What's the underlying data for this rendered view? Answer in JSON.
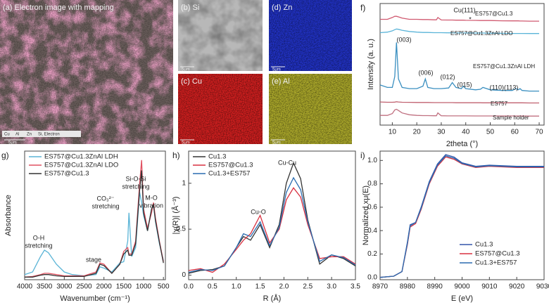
{
  "micrographs": [
    {
      "label": "(a) Electron image with mapping",
      "scale_bar": "5μm",
      "legend": [
        "Cu",
        "Al",
        "Zn",
        "Si, Electron"
      ]
    },
    {
      "label": "(b) Si",
      "scale_bar": "5μm"
    },
    {
      "label": "(d) Zn",
      "scale_bar": "5μm"
    },
    {
      "label": "(c) Cu",
      "scale_bar": "5μm"
    },
    {
      "label": "(e) Al",
      "scale_bar": "5μm"
    }
  ],
  "chart_data": [
    {
      "type": "line",
      "panel": "f)",
      "xlabel": "2theta (°)",
      "ylabel": "Intensity (a. u.)",
      "legend": "direct",
      "xlim": [
        5,
        72
      ],
      "ylim": [
        0,
        100
      ],
      "xticks": [
        10,
        20,
        30,
        40,
        50,
        60,
        70
      ],
      "annotations": [
        "Cu(111)",
        "*",
        "(003)",
        "(006)",
        "(012)",
        "(015)",
        "(110)(113)"
      ],
      "x": [
        5,
        8,
        10,
        11,
        11.7,
        12.5,
        14,
        17,
        20,
        22.5,
        23.5,
        24.5,
        27,
        28,
        28.6,
        30,
        33,
        34.5,
        36,
        38.2,
        39,
        40,
        44,
        46,
        47,
        50,
        55,
        59,
        60.5,
        61.5,
        62.2,
        63,
        66,
        70
      ],
      "series": [
        {
          "name": "ES757@Cu1.3",
          "color": "#d05a70",
          "values": [
            87,
            87,
            88.5,
            89.5,
            89.5,
            89,
            88,
            87,
            87,
            86.8,
            86.8,
            86.8,
            86.6,
            86.6,
            88.5,
            86.5,
            86.4,
            86.4,
            86.3,
            86.3,
            86.3,
            86.2,
            86.1,
            86,
            86,
            86,
            85.8,
            85.7,
            85.7,
            85.7,
            85.6,
            85.6,
            85.5,
            85.5
          ]
        },
        {
          "name": "ES757@Cu1.3ZnAl LDO",
          "color": "#5ab4d8",
          "values": [
            76,
            76.5,
            77.5,
            78.5,
            79,
            78.8,
            78,
            77,
            76.5,
            76.2,
            76.2,
            76.2,
            76,
            76,
            76,
            76,
            75.9,
            75.9,
            75.8,
            75.8,
            75.8,
            75.8,
            75.7,
            75.7,
            75.7,
            75.6,
            75.5,
            75.4,
            75.4,
            75.4,
            75.4,
            75.4,
            75.3,
            75.3
          ]
        },
        {
          "name": "ES757@Cu1.3ZnAl LDH",
          "color": "#3a8fc0",
          "values": [
            33,
            31,
            31,
            40,
            68,
            38,
            31,
            30,
            30,
            32,
            38,
            31,
            30,
            30,
            30,
            30,
            30.5,
            35,
            31,
            30,
            32,
            30,
            29,
            29.5,
            31,
            29,
            28.5,
            28.5,
            30,
            29,
            30,
            28.5,
            28,
            28
          ]
        },
        {
          "name": "ES757",
          "color": "#c0606f",
          "values": [
            19,
            18.8,
            18.8,
            18.9,
            19.2,
            19,
            18.8,
            18.7,
            18.6,
            18.6,
            18.6,
            18.6,
            18.5,
            18.5,
            18.5,
            18.5,
            18.5,
            18.5,
            18.4,
            18.4,
            18.4,
            18.4,
            18.4,
            18.4,
            18.3,
            18.3,
            18.3,
            18.3,
            18.3,
            18.3,
            18.3,
            18.3,
            18.2,
            18.2
          ]
        },
        {
          "name": "Sample holder",
          "color": "#c07080",
          "values": [
            8,
            8,
            9.5,
            12.5,
            13,
            12,
            10,
            8.5,
            8,
            7.8,
            7.8,
            7.8,
            7.7,
            7.7,
            10,
            7.7,
            7.6,
            7.6,
            7.6,
            7.6,
            7.6,
            7.6,
            7.5,
            7.5,
            7.5,
            7.5,
            7.5,
            7.5,
            7.5,
            7.5,
            7.5,
            7.5,
            7.4,
            7.4
          ]
        }
      ]
    },
    {
      "type": "line",
      "panel": "g)",
      "xlabel": "Wavenumber (cm⁻¹)",
      "ylabel": "Absorbance",
      "legend": "upper left",
      "xlim": [
        4000,
        450
      ],
      "ylim": [
        0,
        100
      ],
      "xticks": [
        4000,
        3500,
        3000,
        2500,
        2000,
        1500,
        1000,
        500
      ],
      "annotations": [
        "O-H",
        "stretching",
        "stage",
        "CO₃²⁻",
        "stretching",
        "Si-O-Si",
        "stretching",
        "M-O",
        "vibration"
      ],
      "x": [
        4000,
        3800,
        3600,
        3500,
        3400,
        3200,
        3000,
        2800,
        2500,
        2200,
        2100,
        2000,
        1800,
        1600,
        1500,
        1400,
        1370,
        1300,
        1200,
        1100,
        1050,
        1000,
        900,
        800,
        750,
        700,
        600,
        500
      ],
      "series": [
        {
          "name": "ES757@Cu1.3ZnAl LDH",
          "color": "#5ab4d6",
          "values": [
            4,
            6,
            18,
            23,
            21,
            12,
            6,
            4,
            3,
            4,
            10,
            9,
            6,
            13,
            14,
            30,
            52,
            18,
            25,
            68,
            60,
            50,
            38,
            55,
            58,
            45,
            28,
            15
          ]
        },
        {
          "name": "ES757@Cu1.3ZnAl LDO",
          "color": "#e05060",
          "values": [
            2,
            2.5,
            4,
            5,
            5,
            4,
            3,
            3,
            3,
            6,
            13,
            12,
            5,
            12,
            22,
            25,
            20,
            20,
            30,
            75,
            93,
            55,
            40,
            52,
            60,
            48,
            30,
            14
          ]
        },
        {
          "name": "ES757@Cu1.3",
          "color": "#333333",
          "values": [
            2,
            2,
            3.5,
            4,
            4,
            3,
            2.5,
            2.5,
            2.5,
            5,
            12,
            11,
            5,
            12,
            20,
            23,
            19,
            19,
            28,
            70,
            85,
            52,
            38,
            55,
            58,
            46,
            29,
            13
          ]
        }
      ]
    },
    {
      "type": "line",
      "panel": "h)",
      "xlabel": "R (Å)",
      "ylabel": "|χ(R)| (Å⁻³)",
      "legend": "upper left",
      "xlim": [
        0,
        3.5
      ],
      "ylim": [
        -0.05,
        1.35
      ],
      "xticks": [
        {
          "value": 0,
          "label": "0.0"
        },
        0.5,
        {
          "value": 1,
          "label": "1.0"
        },
        1.5,
        {
          "value": 2,
          "label": "2.0"
        },
        2.5,
        {
          "value": 3,
          "label": "3.0"
        },
        3.5
      ],
      "yticks": [
        0,
        0.5,
        1
      ],
      "annotations": [
        "Cu-O",
        "Cu-Cu"
      ],
      "x": [
        0,
        0.25,
        0.5,
        0.75,
        1,
        1.15,
        1.3,
        1.5,
        1.7,
        1.9,
        2.05,
        2.2,
        2.35,
        2.5,
        2.75,
        3,
        3.25,
        3.5
      ],
      "series": [
        {
          "name": "Cu1.3",
          "color": "#333333",
          "values": [
            0.02,
            0.05,
            0.06,
            0.1,
            0.3,
            0.42,
            0.38,
            0.55,
            0.3,
            0.55,
            1.0,
            1.22,
            1.05,
            0.6,
            0.12,
            0.22,
            0.18,
            0.1
          ]
        },
        {
          "name": "ES757@Cu1.3",
          "color": "#d83040",
          "values": [
            0.05,
            0.07,
            0.03,
            0.12,
            0.28,
            0.38,
            0.45,
            0.65,
            0.35,
            0.5,
            0.82,
            0.95,
            0.85,
            0.55,
            0.18,
            0.2,
            0.2,
            0.12
          ]
        },
        {
          "name": "Cu1.3+ES757",
          "color": "#2a6cb0",
          "values": [
            0.03,
            0.06,
            0.05,
            0.1,
            0.3,
            0.45,
            0.42,
            0.58,
            0.32,
            0.52,
            0.9,
            1.06,
            0.93,
            0.58,
            0.15,
            0.22,
            0.19,
            0.11
          ]
        }
      ]
    },
    {
      "type": "line",
      "panel": "i)",
      "xlabel": "E (eV)",
      "ylabel": "Normalized xμ(E)",
      "legend": "lower right",
      "xlim": [
        8970,
        9030
      ],
      "ylim": [
        -0.02,
        1.08
      ],
      "xticks": [
        8970,
        8980,
        8990,
        9000,
        9010,
        9020,
        9030
      ],
      "yticks": [
        {
          "value": 0,
          "label": "0.0"
        },
        0.2,
        0.4,
        0.6,
        0.8,
        {
          "value": 1,
          "label": "1.0"
        }
      ],
      "x": [
        8970,
        8975,
        8978,
        8980,
        8981,
        8983,
        8985,
        8988,
        8991,
        8994,
        8997,
        9000,
        9005,
        9010,
        9020,
        9030
      ],
      "series": [
        {
          "name": "Cu1.3",
          "color": "#3355aa",
          "values": [
            0,
            0.01,
            0.05,
            0.3,
            0.45,
            0.47,
            0.6,
            0.82,
            0.97,
            1.05,
            1.03,
            0.98,
            0.95,
            0.96,
            0.95,
            0.95
          ]
        },
        {
          "name": "ES757@Cu1.3",
          "color": "#d83040",
          "values": [
            0,
            0.01,
            0.05,
            0.28,
            0.43,
            0.46,
            0.58,
            0.8,
            0.95,
            1.03,
            1.01,
            0.97,
            0.94,
            0.95,
            0.94,
            0.94
          ]
        },
        {
          "name": "Cu1.3+ES757",
          "color": "#2a6cb0",
          "values": [
            0,
            0.01,
            0.05,
            0.29,
            0.44,
            0.47,
            0.59,
            0.81,
            0.96,
            1.04,
            1.02,
            0.975,
            0.945,
            0.955,
            0.945,
            0.945
          ]
        }
      ]
    }
  ]
}
